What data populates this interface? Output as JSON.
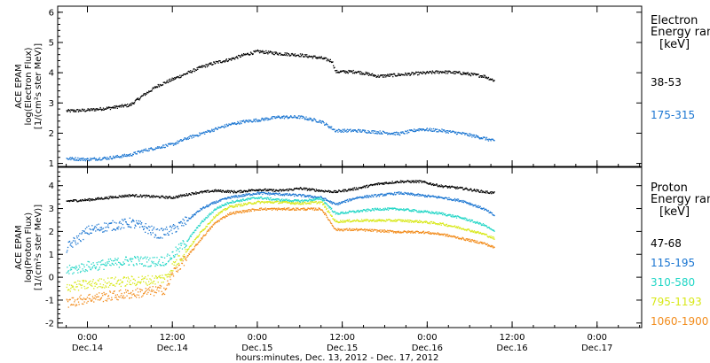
{
  "chart_data": [
    {
      "type": "scatter",
      "panel": "electron",
      "ylabel_lines": [
        "ACE EPAM",
        "log(Electron Flux)",
        "[1/(cm²s ster MeV)]"
      ],
      "ylim": [
        0.9,
        6.2
      ],
      "yticks": [
        1,
        2,
        3,
        4,
        5,
        6
      ],
      "legend_title": [
        "Electron",
        "Energy ranges",
        "[keV]"
      ],
      "series": [
        {
          "name": "38-53",
          "color": "#000000",
          "points": [
            [
              -3,
              2.75
            ],
            [
              0,
              2.78
            ],
            [
              3,
              2.85
            ],
            [
              6,
              2.95
            ],
            [
              8,
              3.3
            ],
            [
              10,
              3.6
            ],
            [
              12,
              3.8
            ],
            [
              14,
              4.0
            ],
            [
              16,
              4.2
            ],
            [
              18,
              4.35
            ],
            [
              20,
              4.45
            ],
            [
              22,
              4.6
            ],
            [
              24,
              4.72
            ],
            [
              27,
              4.65
            ],
            [
              30,
              4.6
            ],
            [
              33,
              4.5
            ],
            [
              34.5,
              4.4
            ],
            [
              35,
              4.05
            ],
            [
              36,
              4.05
            ],
            [
              38,
              4.05
            ],
            [
              41,
              3.9
            ],
            [
              44,
              3.95
            ],
            [
              47,
              4.0
            ],
            [
              50,
              4.05
            ],
            [
              53,
              4.0
            ],
            [
              56,
              3.9
            ],
            [
              57.5,
              3.75
            ]
          ]
        },
        {
          "name": "175-315",
          "color": "#1a75d1",
          "points": [
            [
              -3,
              1.18
            ],
            [
              0,
              1.15
            ],
            [
              3,
              1.2
            ],
            [
              6,
              1.3
            ],
            [
              8,
              1.45
            ],
            [
              10,
              1.55
            ],
            [
              12,
              1.65
            ],
            [
              14,
              1.85
            ],
            [
              16,
              2.0
            ],
            [
              18,
              2.15
            ],
            [
              20,
              2.3
            ],
            [
              22,
              2.4
            ],
            [
              24,
              2.45
            ],
            [
              27,
              2.55
            ],
            [
              30,
              2.55
            ],
            [
              33,
              2.4
            ],
            [
              35,
              2.1
            ],
            [
              38,
              2.1
            ],
            [
              41,
              2.05
            ],
            [
              44,
              2.0
            ],
            [
              47,
              2.15
            ],
            [
              50,
              2.1
            ],
            [
              53,
              2.0
            ],
            [
              56,
              1.85
            ],
            [
              57.5,
              1.75
            ]
          ]
        }
      ]
    },
    {
      "type": "scatter",
      "panel": "proton",
      "ylabel_lines": [
        "ACE EPAM",
        "log(Proton Flux)",
        "[1/(cm²s ster MeV)]"
      ],
      "ylim": [
        -2.2,
        4.8
      ],
      "yticks": [
        -2,
        -1,
        0,
        1,
        2,
        3,
        4
      ],
      "legend_title": [
        "Proton",
        "Energy ranges",
        "[keV]"
      ],
      "series": [
        {
          "name": "47-68",
          "color": "#000000",
          "points": [
            [
              -3,
              3.35
            ],
            [
              0,
              3.4
            ],
            [
              3,
              3.5
            ],
            [
              6,
              3.6
            ],
            [
              9,
              3.55
            ],
            [
              12,
              3.5
            ],
            [
              15,
              3.7
            ],
            [
              18,
              3.8
            ],
            [
              21,
              3.75
            ],
            [
              24,
              3.85
            ],
            [
              27,
              3.8
            ],
            [
              30,
              3.9
            ],
            [
              33,
              3.8
            ],
            [
              35,
              3.75
            ],
            [
              38,
              3.9
            ],
            [
              41,
              4.1
            ],
            [
              44,
              4.2
            ],
            [
              47,
              4.2
            ],
            [
              50,
              4.0
            ],
            [
              53,
              3.9
            ],
            [
              56,
              3.75
            ],
            [
              57.5,
              3.7
            ]
          ]
        },
        {
          "name": "115-195",
          "color": "#1a75d1",
          "points": [
            [
              -3,
              1.3
            ],
            [
              0,
              2.05
            ],
            [
              2,
              2.2
            ],
            [
              4,
              2.3
            ],
            [
              6,
              2.4
            ],
            [
              8,
              2.2
            ],
            [
              10,
              1.9
            ],
            [
              12,
              2.1
            ],
            [
              14,
              2.5
            ],
            [
              16,
              3.0
            ],
            [
              18,
              3.3
            ],
            [
              20,
              3.5
            ],
            [
              24,
              3.7
            ],
            [
              27,
              3.65
            ],
            [
              30,
              3.6
            ],
            [
              33,
              3.5
            ],
            [
              35,
              3.2
            ],
            [
              38,
              3.5
            ],
            [
              41,
              3.6
            ],
            [
              44,
              3.7
            ],
            [
              47,
              3.6
            ],
            [
              50,
              3.5
            ],
            [
              53,
              3.35
            ],
            [
              56,
              3.0
            ],
            [
              57.5,
              2.7
            ]
          ]
        },
        {
          "name": "310-580",
          "color": "#21d6c6",
          "points": [
            [
              -3,
              0.3
            ],
            [
              0,
              0.5
            ],
            [
              3,
              0.6
            ],
            [
              6,
              0.75
            ],
            [
              9,
              0.7
            ],
            [
              11,
              0.75
            ],
            [
              12,
              1.0
            ],
            [
              14,
              1.6
            ],
            [
              16,
              2.4
            ],
            [
              18,
              3.0
            ],
            [
              20,
              3.3
            ],
            [
              24,
              3.5
            ],
            [
              27,
              3.4
            ],
            [
              30,
              3.35
            ],
            [
              33,
              3.45
            ],
            [
              35,
              2.8
            ],
            [
              38,
              2.9
            ],
            [
              41,
              3.0
            ],
            [
              44,
              3.0
            ],
            [
              47,
              2.9
            ],
            [
              50,
              2.8
            ],
            [
              53,
              2.6
            ],
            [
              56,
              2.3
            ],
            [
              57.5,
              2.0
            ]
          ]
        },
        {
          "name": "795-1193",
          "color": "#d8e818",
          "points": [
            [
              -3,
              -0.4
            ],
            [
              0,
              -0.3
            ],
            [
              3,
              -0.2
            ],
            [
              6,
              -0.15
            ],
            [
              9,
              -0.1
            ],
            [
              11,
              0.0
            ],
            [
              12,
              0.5
            ],
            [
              14,
              1.2
            ],
            [
              16,
              2.0
            ],
            [
              18,
              2.7
            ],
            [
              20,
              3.1
            ],
            [
              24,
              3.3
            ],
            [
              27,
              3.3
            ],
            [
              30,
              3.25
            ],
            [
              33,
              3.3
            ],
            [
              35,
              2.45
            ],
            [
              38,
              2.5
            ],
            [
              41,
              2.5
            ],
            [
              44,
              2.5
            ],
            [
              47,
              2.45
            ],
            [
              50,
              2.35
            ],
            [
              53,
              2.15
            ],
            [
              56,
              1.9
            ],
            [
              57.5,
              1.7
            ]
          ]
        },
        {
          "name": "1060-1900",
          "color": "#f28c1c",
          "points": [
            [
              -3,
              -1.1
            ],
            [
              0,
              -0.9
            ],
            [
              3,
              -0.8
            ],
            [
              6,
              -0.7
            ],
            [
              9,
              -0.6
            ],
            [
              11,
              -0.5
            ],
            [
              12,
              0.2
            ],
            [
              14,
              0.9
            ],
            [
              16,
              1.7
            ],
            [
              18,
              2.4
            ],
            [
              20,
              2.8
            ],
            [
              24,
              3.0
            ],
            [
              27,
              3.0
            ],
            [
              30,
              3.0
            ],
            [
              33,
              3.0
            ],
            [
              35,
              2.1
            ],
            [
              38,
              2.1
            ],
            [
              41,
              2.05
            ],
            [
              44,
              2.0
            ],
            [
              47,
              2.0
            ],
            [
              50,
              1.9
            ],
            [
              53,
              1.7
            ],
            [
              56,
              1.5
            ],
            [
              57.5,
              1.3
            ]
          ]
        }
      ]
    }
  ],
  "x_axis": {
    "unit": "hours from 0:00 Dec.14, 2012",
    "xlim": [
      -4.2,
      78.3
    ],
    "ticks": [
      {
        "x": 0,
        "time": "0:00",
        "day": "Dec.14"
      },
      {
        "x": 12,
        "time": "12:00",
        "day": "Dec.14"
      },
      {
        "x": 24,
        "time": "0:00",
        "day": "Dec.15"
      },
      {
        "x": 36,
        "time": "12:00",
        "day": "Dec.15"
      },
      {
        "x": 48,
        "time": "0:00",
        "day": "Dec.16"
      },
      {
        "x": 60,
        "time": "12:00",
        "day": "Dec.16"
      },
      {
        "x": 72,
        "time": "0:00",
        "day": "Dec.17"
      }
    ],
    "label": "hours:minutes, Dec. 13, 2012 - Dec. 17, 2012"
  }
}
